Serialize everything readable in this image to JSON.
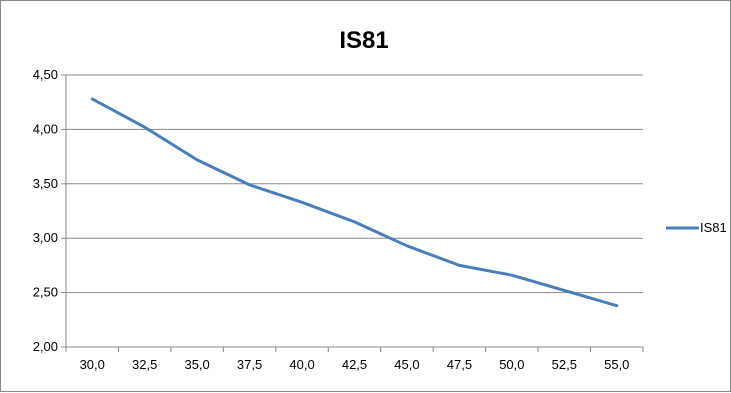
{
  "chart_data": {
    "type": "line",
    "title": "IS81",
    "xlabel": "",
    "ylabel": "",
    "categories": [
      "30,0",
      "32,5",
      "35,0",
      "37,5",
      "40,0",
      "42,5",
      "45,0",
      "47,5",
      "50,0",
      "52,5",
      "55,0"
    ],
    "y_tick_labels": [
      "2,00",
      "2,50",
      "3,00",
      "3,50",
      "4,00",
      "4,50"
    ],
    "y_ticks": [
      2.0,
      2.5,
      3.0,
      3.5,
      4.0,
      4.5
    ],
    "ylim": [
      2.0,
      4.5
    ],
    "grid": "horizontal",
    "legend_position": "right",
    "series": [
      {
        "name": "IS81",
        "color": "#4a7ebb",
        "values": [
          4.28,
          4.02,
          3.72,
          3.49,
          3.33,
          3.15,
          2.93,
          2.75,
          2.66,
          2.52,
          2.38
        ]
      }
    ]
  }
}
